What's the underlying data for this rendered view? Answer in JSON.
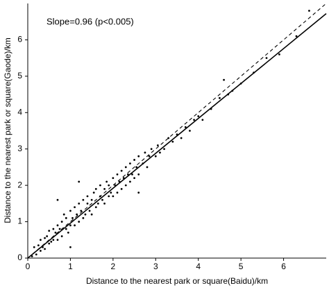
{
  "chart_data": {
    "type": "scatter",
    "annotation": "Slope=0.96 (p<0.005)",
    "x_label": "Distance to the nearest park or square(Baidu)/km",
    "y_label": "Distance to the nearest park or square(Gaode)/km",
    "color": "#000000",
    "xlim": [
      0,
      7
    ],
    "ylim": [
      0,
      7
    ],
    "xticks": [
      0,
      1,
      2,
      3,
      4,
      5,
      6
    ],
    "yticks": [
      0,
      1,
      2,
      3,
      4,
      5,
      6
    ],
    "x": [
      0.1,
      0.15,
      0.2,
      0.25,
      0.3,
      0.3,
      0.35,
      0.4,
      0.4,
      0.45,
      0.5,
      0.5,
      0.55,
      0.6,
      0.6,
      0.65,
      0.7,
      0.7,
      0.75,
      0.8,
      0.8,
      0.85,
      0.9,
      0.9,
      0.95,
      1.0,
      1.0,
      1.05,
      1.1,
      1.1,
      1.15,
      1.2,
      1.2,
      1.25,
      1.3,
      1.3,
      1.35,
      1.4,
      1.4,
      1.45,
      1.5,
      1.5,
      1.55,
      1.6,
      1.6,
      1.65,
      1.7,
      1.7,
      1.75,
      1.8,
      1.8,
      1.85,
      1.9,
      1.9,
      1.95,
      2.0,
      2.0,
      2.05,
      2.1,
      2.1,
      2.15,
      2.2,
      2.2,
      2.25,
      2.3,
      2.3,
      2.35,
      2.4,
      2.4,
      2.45,
      2.5,
      2.5,
      2.55,
      2.6,
      2.6,
      2.7,
      2.75,
      2.8,
      2.85,
      2.9,
      3.0,
      3.05,
      3.1,
      3.2,
      3.3,
      3.4,
      3.5,
      3.6,
      3.7,
      3.8,
      3.9,
      4.0,
      4.1,
      4.3,
      4.5,
      4.6,
      4.7,
      4.8,
      5.0,
      5.3,
      5.6,
      5.9,
      6.3,
      6.6,
      0.7,
      1.2,
      2.6,
      1.0
    ],
    "y": [
      0.05,
      0.3,
      0.1,
      0.35,
      0.2,
      0.5,
      0.3,
      0.55,
      0.25,
      0.6,
      0.4,
      0.75,
      0.45,
      0.8,
      0.5,
      0.7,
      0.9,
      0.5,
      0.8,
      1.0,
      0.6,
      1.2,
      0.8,
      1.1,
      0.7,
      1.3,
      0.9,
      1.1,
      1.4,
      0.9,
      1.2,
      1.5,
      1.0,
      1.3,
      1.1,
      1.6,
      1.2,
      1.5,
      1.7,
      1.3,
      1.6,
      1.2,
      1.8,
      1.4,
      1.9,
      1.5,
      1.7,
      2.0,
      1.6,
      1.9,
      1.5,
      2.1,
      1.7,
      2.0,
      1.8,
      2.2,
      1.7,
      2.0,
      2.3,
      1.8,
      2.1,
      2.4,
      1.9,
      2.2,
      2.5,
      2.0,
      2.3,
      2.6,
      2.1,
      2.3,
      2.7,
      2.2,
      2.5,
      2.8,
      2.3,
      2.6,
      2.9,
      2.5,
      2.8,
      3.0,
      2.8,
      3.1,
      2.9,
      3.0,
      3.3,
      3.2,
      3.4,
      3.3,
      3.6,
      3.5,
      3.8,
      3.9,
      3.8,
      4.1,
      4.4,
      4.9,
      4.5,
      4.6,
      4.8,
      5.1,
      5.5,
      5.6,
      6.1,
      6.8,
      1.6,
      2.1,
      1.8,
      0.3
    ],
    "fit_line": {
      "x": [
        0,
        7
      ],
      "y": [
        0,
        6.72
      ],
      "style": "solid"
    },
    "reference_line": {
      "x": [
        0,
        7
      ],
      "y": [
        0,
        7
      ],
      "style": "dashed"
    }
  }
}
